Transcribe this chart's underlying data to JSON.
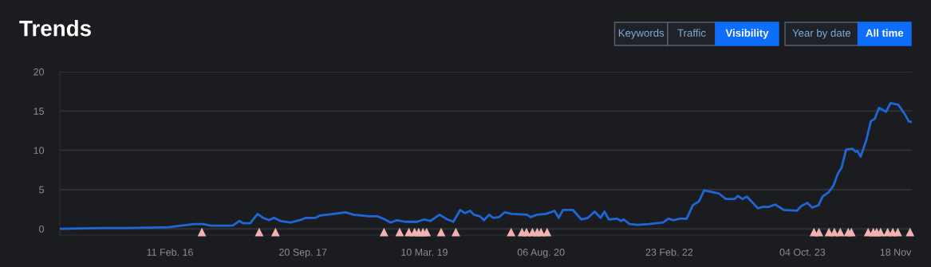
{
  "chart_data": {
    "type": "line",
    "title": "Trends",
    "annotations": [
      "Keywords",
      "Traffic",
      "Visibility",
      "Year by date",
      "All time"
    ],
    "xlim": [
      "2014-10-13",
      "2025-01-29"
    ],
    "xticks": [
      {
        "value": "2016-02-11",
        "label": "11 Feb. 16"
      },
      {
        "value": "2017-09-20",
        "label": "20 Sep. 17"
      },
      {
        "value": "2019-03-10",
        "label": "10 Mar. 19"
      },
      {
        "value": "2020-08-06",
        "label": "06 Aug. 20"
      },
      {
        "value": "2022-02-23",
        "label": "23 Feb. 22"
      },
      {
        "value": "2023-10-04",
        "label": "04 Oct. 23"
      },
      {
        "value": "2024-11-18",
        "label": "18 Nov"
      }
    ],
    "ylim": [
      -0.8,
      20
    ],
    "yticks": [
      0,
      5,
      10,
      15,
      20
    ],
    "grid": "y",
    "legend": false,
    "series": [
      {
        "color": "#1f66d6",
        "marker": "none",
        "line_style": "solid",
        "x": [
          "2014-10-13",
          "2015-04-08",
          "2015-08-03",
          "2016-02-03",
          "2016-05-27",
          "2016-07-05",
          "2016-08-11",
          "2016-11-14",
          "2016-12-13",
          "2017-01-01",
          "2017-01-30",
          "2017-03-04",
          "2017-03-28",
          "2017-04-23",
          "2017-05-15",
          "2017-06-13",
          "2017-07-27",
          "2017-09-16",
          "2017-10-04",
          "2017-11-15",
          "2017-12-06",
          "2018-02-03",
          "2018-03-27",
          "2018-05-01",
          "2018-07-09",
          "2018-08-14",
          "2018-09-17",
          "2018-10-12",
          "2018-11-09",
          "2018-12-14",
          "2019-02-06",
          "2019-03-10",
          "2019-04-06",
          "2019-05-16",
          "2019-06-19",
          "2019-07-16",
          "2019-08-15",
          "2019-09-05",
          "2019-09-28",
          "2019-10-15",
          "2019-11-10",
          "2019-11-28",
          "2019-12-21",
          "2020-01-08",
          "2020-02-04",
          "2020-02-27",
          "2020-03-31",
          "2020-06-05",
          "2020-06-21",
          "2020-07-20",
          "2020-08-28",
          "2020-10-05",
          "2020-10-23",
          "2020-11-11",
          "2020-12-25",
          "2021-01-31",
          "2021-03-01",
          "2021-03-31",
          "2021-04-26",
          "2021-05-13",
          "2021-06-01",
          "2021-07-07",
          "2021-07-26",
          "2021-08-06",
          "2021-09-01",
          "2021-10-08",
          "2021-11-26",
          "2022-01-27",
          "2022-02-19",
          "2022-03-14",
          "2022-04-11",
          "2022-05-11",
          "2022-06-07",
          "2022-07-04",
          "2022-07-27",
          "2022-08-30",
          "2022-09-30",
          "2022-10-31",
          "2022-12-08",
          "2022-12-23",
          "2023-01-11",
          "2023-02-01",
          "2023-03-22",
          "2023-04-10",
          "2023-05-10",
          "2023-06-06",
          "2023-07-14",
          "2023-09-09",
          "2023-09-29",
          "2023-10-26",
          "2023-11-16",
          "2023-12-14",
          "2024-01-01",
          "2024-01-29",
          "2024-02-18",
          "2024-03-08",
          "2024-03-25",
          "2024-04-14",
          "2024-05-12",
          "2024-05-26",
          "2024-06-03",
          "2024-06-17",
          "2024-07-12",
          "2024-08-01",
          "2024-08-18",
          "2024-09-06",
          "2024-10-07",
          "2024-10-27",
          "2024-11-30",
          "2024-12-31",
          "2025-01-15",
          "2025-01-29"
        ],
        "values": [
          0,
          0.1,
          0.1,
          0.2,
          0.6,
          0.6,
          0.4,
          0.4,
          1.0,
          0.7,
          0.7,
          1.9,
          1.4,
          1.1,
          1.4,
          1.0,
          0.8,
          1.2,
          1.4,
          1.4,
          1.7,
          1.9,
          2.1,
          1.8,
          1.6,
          1.6,
          1.2,
          0.8,
          1.1,
          0.9,
          0.9,
          1.2,
          1.0,
          1.8,
          1.2,
          0.9,
          2.4,
          2.0,
          2.3,
          1.8,
          1.6,
          1.1,
          1.8,
          1.4,
          1.5,
          2.1,
          1.9,
          1.8,
          1.5,
          1.8,
          1.9,
          2.3,
          1.4,
          2.4,
          2.4,
          1.2,
          1.4,
          2.2,
          1.4,
          2.2,
          1.2,
          1.3,
          1.0,
          1.2,
          0.6,
          0.5,
          0.6,
          0.8,
          1.3,
          1.1,
          1.3,
          1.3,
          3.0,
          3.5,
          4.9,
          4.7,
          4.5,
          3.8,
          3.8,
          4.2,
          3.8,
          4.1,
          2.6,
          2.8,
          2.8,
          3.1,
          2.4,
          2.3,
          2.9,
          3.3,
          2.7,
          3.0,
          4.1,
          4.7,
          5.5,
          7.0,
          7.8,
          10.1,
          10.2,
          9.8,
          9.9,
          9.2,
          11.3,
          13.7,
          14.0,
          15.4,
          14.9,
          16.0,
          15.8,
          14.5,
          13.7,
          13.6
        ]
      },
      {
        "type": "scatter",
        "color": "#f0b3b0",
        "marker": "triangle",
        "x": [
          "2016-07-01",
          "2017-03-11",
          "2017-05-22",
          "2018-09-13",
          "2018-11-21",
          "2019-01-01",
          "2019-01-26",
          "2019-02-13",
          "2019-03-04",
          "2019-03-20",
          "2019-05-23",
          "2019-07-27",
          "2020-03-27",
          "2020-05-14",
          "2020-06-03",
          "2020-06-29",
          "2020-07-20",
          "2020-08-06",
          "2020-09-02",
          "2023-11-24",
          "2023-12-16",
          "2024-01-29",
          "2024-02-22",
          "2024-03-19",
          "2024-04-23",
          "2024-05-07",
          "2024-07-20",
          "2024-08-12",
          "2024-08-27",
          "2024-09-13",
          "2024-10-14",
          "2024-11-06",
          "2024-11-28",
          "2025-01-21"
        ],
        "values": [
          -0.4,
          -0.4,
          -0.4,
          -0.4,
          -0.4,
          -0.4,
          -0.4,
          -0.4,
          -0.4,
          -0.4,
          -0.4,
          -0.4,
          -0.4,
          -0.4,
          -0.4,
          -0.4,
          -0.4,
          -0.4,
          -0.4,
          -0.4,
          -0.4,
          -0.4,
          -0.4,
          -0.4,
          -0.4,
          -0.4,
          -0.4,
          -0.4,
          -0.4,
          -0.4,
          -0.4,
          -0.4,
          -0.4,
          -0.4
        ]
      }
    ]
  }
}
